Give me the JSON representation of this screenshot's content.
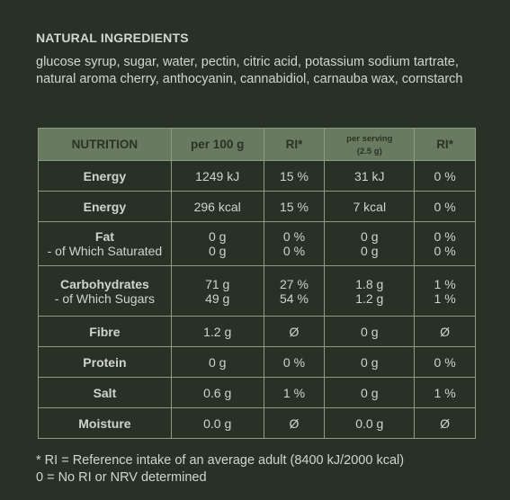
{
  "heading": "NATURAL INGREDIENTS",
  "ingredients": "glucose syrup, sugar, water, pectin, citric acid,  potassium sodium tartrate, natural aroma cherry, anthocyanin, cannabidiol, carnauba wax, cornstarch",
  "table": {
    "headers": [
      "NUTRITION",
      "per 100 g",
      "RI*",
      "per serving (2.5 g)",
      "RI*"
    ],
    "header_serving_line1": "per serving",
    "header_serving_line2": "(2.5 g)",
    "rows": {
      "energy_kj": {
        "label": "Energy",
        "per100": "1249 kJ",
        "ri": "15 %",
        "serving": "31 kJ",
        "ri2": "0 %"
      },
      "energy_kcal": {
        "label": "Energy",
        "per100": "296 kcal",
        "ri": "15 %",
        "serving": "7 kcal",
        "ri2": "0 %"
      },
      "fat": {
        "label": "Fat",
        "sublabel": "- of Which Saturated",
        "per100": "0 g",
        "per100_sub": "0 g",
        "ri": "0 %",
        "ri_sub": "0 %",
        "serving": "0 g",
        "serving_sub": "0 g",
        "ri2": "0 %",
        "ri2_sub": "0 %"
      },
      "carbs": {
        "label": "Carbohydrates",
        "sublabel": "- of Which Sugars",
        "per100": "71 g",
        "per100_sub": "49 g",
        "ri": "27 %",
        "ri_sub": "54 %",
        "serving": "1.8 g",
        "serving_sub": "1.2 g",
        "ri2": "1 %",
        "ri2_sub": "1 %"
      },
      "fibre": {
        "label": "Fibre",
        "per100": "1.2 g",
        "ri": "Ø",
        "serving": "0 g",
        "ri2": "Ø"
      },
      "protein": {
        "label": "Protein",
        "per100": "0 g",
        "ri": "0 %",
        "serving": "0 g",
        "ri2": "0 %"
      },
      "salt": {
        "label": "Salt",
        "per100": "0.6 g",
        "ri": "1 %",
        "serving": "0 g",
        "ri2": "1 %"
      },
      "moisture": {
        "label": "Moisture",
        "per100": "0.0 g",
        "ri": "Ø",
        "serving": "0.0 g",
        "ri2": "Ø"
      }
    }
  },
  "footnote_line1": "* RI = Reference intake of an average adult (8400 kJ/2000 kcal)",
  "footnote_line2": "0 = No RI or NRV determined",
  "colors": {
    "background": "#283126",
    "header_bg": "#687a60",
    "border": "#8e9a85",
    "text": "#d2d6cc"
  }
}
